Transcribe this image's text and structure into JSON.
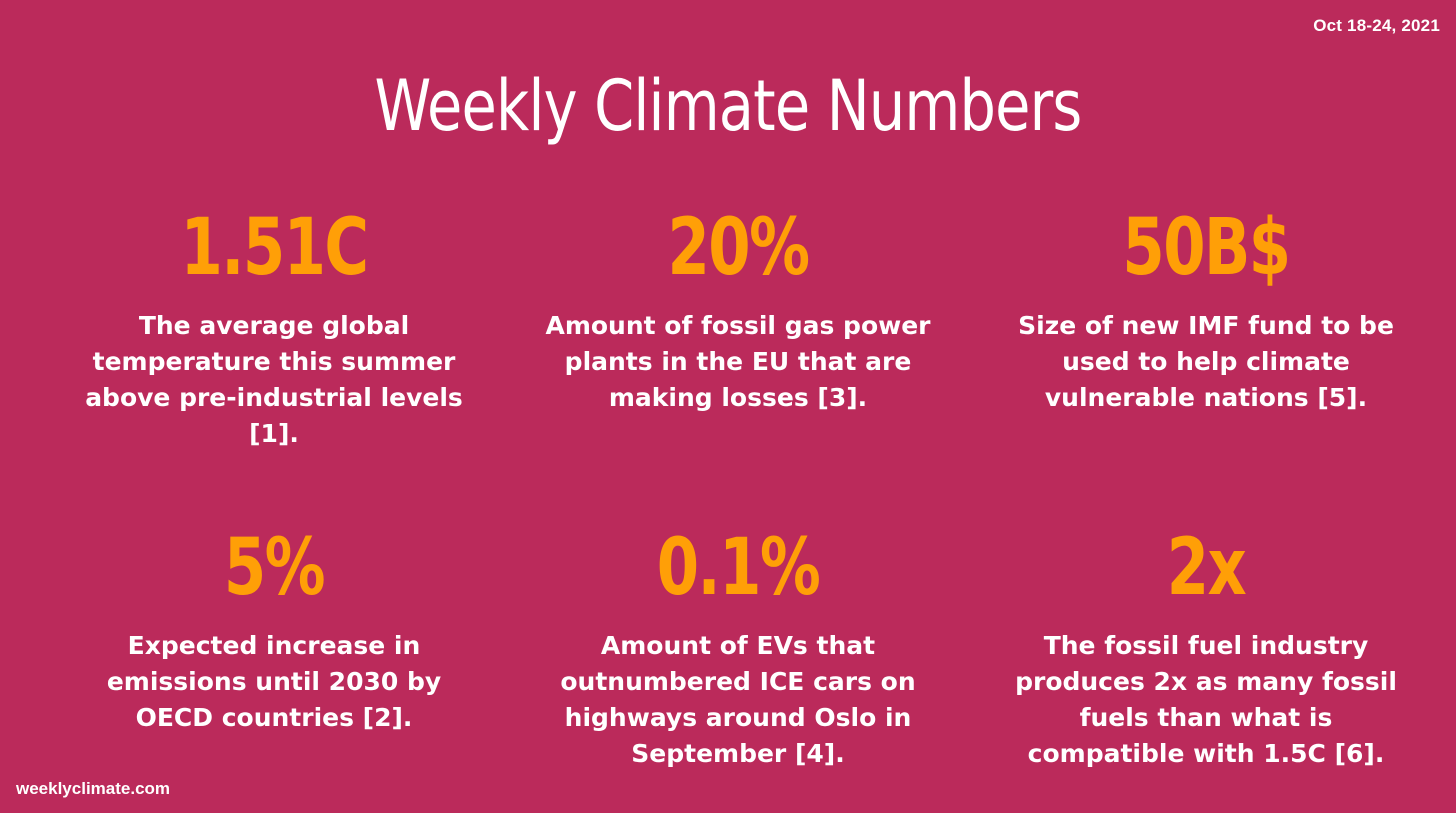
{
  "date": "Oct 18-24, 2021",
  "title": "Weekly Climate Numbers",
  "stats": [
    {
      "number": "1.51C",
      "description": "The average global temperature this summer above pre-industrial levels [1]."
    },
    {
      "number": "20%",
      "description": "Amount of fossil gas power plants in the EU that are making losses [3]."
    },
    {
      "number": "50B$",
      "description": "Size of new IMF fund to be used to help climate vulnerable nations [5]."
    },
    {
      "number": "5%",
      "description": "Expected increase in emissions until 2030 by OECD countries [2]."
    },
    {
      "number": "0.1%",
      "description": "Amount of EVs that outnumbered ICE cars on highways around Oslo in September [4]."
    },
    {
      "number": "2x",
      "description": "The fossil fuel industry produces 2x as many fossil fuels than what is compatible with 1.5C [6]."
    }
  ],
  "footer": "weeklyclimate.com",
  "colors": {
    "background": "#bb2a5b",
    "accent": "#ff9f07",
    "text": "#ffffff"
  }
}
